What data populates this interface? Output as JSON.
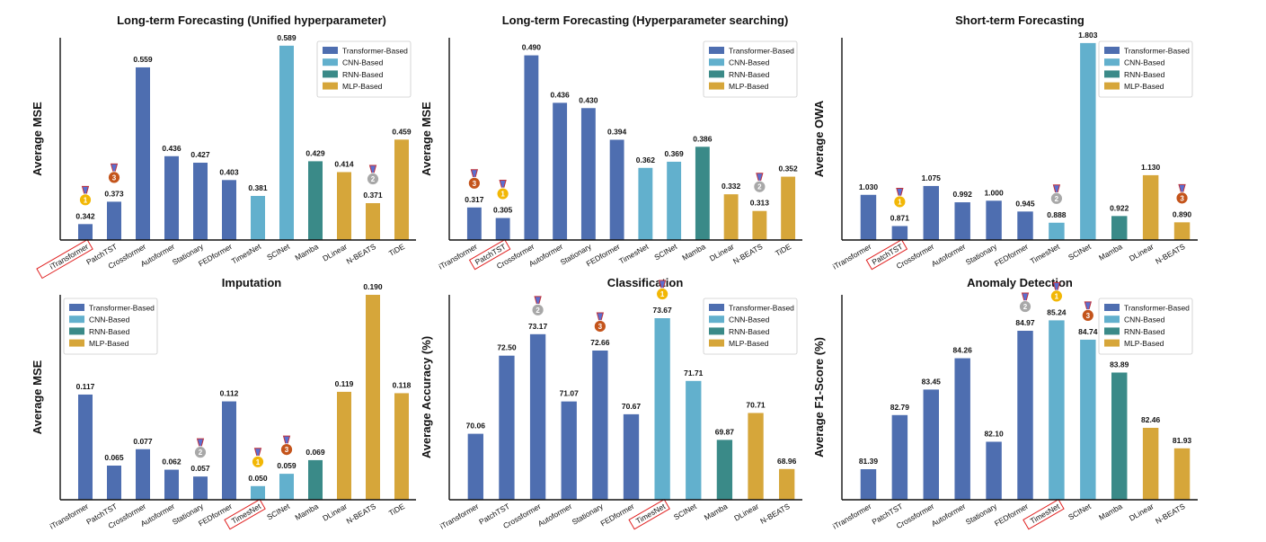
{
  "colors": {
    "Transformer-Based": "#4e6eb0",
    "CNN-Based": "#62b0cd",
    "RNN-Based": "#3a8a88",
    "MLP-Based": "#d6a63a",
    "gold": "#f2b705",
    "silver": "#a8a8a8",
    "bronze": "#c4541b",
    "highlight": "#e02020"
  },
  "legend": [
    "Transformer-Based",
    "CNN-Based",
    "RNN-Based",
    "MLP-Based"
  ],
  "chart_data": [
    {
      "type": "bar",
      "title": "Long-term Forecasting (Unified hyperparameter)",
      "ylabel": "Average MSE",
      "ylim": [
        0.32,
        0.6
      ],
      "legend_position": "top-right",
      "highlight": "iTransformer",
      "categories": [
        "iTransformer",
        "PatchTST",
        "Crossformer",
        "Autoformer",
        "Stationary",
        "FEDformer",
        "TimesNet",
        "SCINet",
        "Mamba",
        "DLinear",
        "N-BEATS",
        "TiDE"
      ],
      "values": [
        0.342,
        0.373,
        0.559,
        0.436,
        0.427,
        0.403,
        0.381,
        0.589,
        0.429,
        0.414,
        0.371,
        0.459
      ],
      "labels": [
        "0.342",
        "0.373",
        "0.559",
        "0.436",
        "0.427",
        "0.403",
        "0.381",
        "0.589",
        "0.429",
        "0.414",
        "0.371",
        "0.459"
      ],
      "groups": [
        "Transformer-Based",
        "Transformer-Based",
        "Transformer-Based",
        "Transformer-Based",
        "Transformer-Based",
        "Transformer-Based",
        "CNN-Based",
        "CNN-Based",
        "RNN-Based",
        "MLP-Based",
        "MLP-Based",
        "MLP-Based"
      ],
      "medals": [
        {
          "index": 0,
          "rank": "1"
        },
        {
          "index": 1,
          "rank": "3"
        },
        {
          "index": 10,
          "rank": "2"
        }
      ]
    },
    {
      "type": "bar",
      "title": "Long-term Forecasting (Hyperparameter searching)",
      "ylabel": "Average MSE",
      "ylim": [
        0.28,
        0.51
      ],
      "legend_position": "top-right",
      "highlight": "PatchTST",
      "categories": [
        "iTransformer",
        "PatchTST",
        "Crossformer",
        "Autoformer",
        "Stationary",
        "FEDformer",
        "TimesNet",
        "SCINet",
        "Mamba",
        "DLinear",
        "N-BEATS",
        "TiDE"
      ],
      "values": [
        0.317,
        0.305,
        0.49,
        0.436,
        0.43,
        0.394,
        0.362,
        0.369,
        0.386,
        0.332,
        0.313,
        0.352
      ],
      "labels": [
        "0.317",
        "0.305",
        "0.490",
        "0.436",
        "0.430",
        "0.394",
        "0.362",
        "0.369",
        "0.386",
        "0.332",
        "0.313",
        "0.352"
      ],
      "groups": [
        "Transformer-Based",
        "Transformer-Based",
        "Transformer-Based",
        "Transformer-Based",
        "Transformer-Based",
        "Transformer-Based",
        "CNN-Based",
        "CNN-Based",
        "RNN-Based",
        "MLP-Based",
        "MLP-Based",
        "MLP-Based"
      ],
      "medals": [
        {
          "index": 0,
          "rank": "3"
        },
        {
          "index": 1,
          "rank": "1"
        },
        {
          "index": 10,
          "rank": "2"
        }
      ]
    },
    {
      "type": "bar",
      "title": "Short-term Forecasting",
      "ylabel": "Average OWA",
      "ylim": [
        0.8,
        1.83
      ],
      "legend_position": "top-right",
      "highlight": "PatchTST",
      "categories": [
        "iTransformer",
        "PatchTST",
        "Crossformer",
        "Autoformer",
        "Stationary",
        "FEDformer",
        "TimesNet",
        "SCINet",
        "Mamba",
        "DLinear",
        "N-BEATS"
      ],
      "values": [
        1.03,
        0.871,
        1.075,
        0.992,
        1.0,
        0.945,
        0.888,
        1.803,
        0.922,
        1.13,
        0.89
      ],
      "labels": [
        "1.030",
        "0.871",
        "1.075",
        "0.992",
        "1.000",
        "0.945",
        "0.888",
        "1.803",
        "0.922",
        "1.130",
        "0.890"
      ],
      "groups": [
        "Transformer-Based",
        "Transformer-Based",
        "Transformer-Based",
        "Transformer-Based",
        "Transformer-Based",
        "Transformer-Based",
        "CNN-Based",
        "CNN-Based",
        "RNN-Based",
        "MLP-Based",
        "MLP-Based"
      ],
      "medals": [
        {
          "index": 1,
          "rank": "1"
        },
        {
          "index": 6,
          "rank": "2"
        },
        {
          "index": 10,
          "rank": "3"
        }
      ]
    },
    {
      "type": "bar",
      "title": "Imputation",
      "ylabel": "Average MSE",
      "ylim": [
        0.04,
        0.19
      ],
      "legend_position": "top-left",
      "highlight": "TimesNet",
      "categories": [
        "iTransformer",
        "PatchTST",
        "Crossformer",
        "Autoformer",
        "Stationary",
        "FEDformer",
        "TimesNet",
        "SCINet",
        "Mamba",
        "DLinear",
        "N-BEATS",
        "TiDE"
      ],
      "values": [
        0.117,
        0.065,
        0.077,
        0.062,
        0.057,
        0.112,
        0.05,
        0.059,
        0.069,
        0.119,
        0.19,
        0.118
      ],
      "labels": [
        "0.117",
        "0.065",
        "0.077",
        "0.062",
        "0.057",
        "0.112",
        "0.050",
        "0.059",
        "0.069",
        "0.119",
        "0.190",
        "0.118"
      ],
      "groups": [
        "Transformer-Based",
        "Transformer-Based",
        "Transformer-Based",
        "Transformer-Based",
        "Transformer-Based",
        "Transformer-Based",
        "CNN-Based",
        "CNN-Based",
        "RNN-Based",
        "MLP-Based",
        "MLP-Based",
        "MLP-Based"
      ],
      "medals": [
        {
          "index": 4,
          "rank": "2"
        },
        {
          "index": 6,
          "rank": "1"
        },
        {
          "index": 7,
          "rank": "3"
        }
      ]
    },
    {
      "type": "bar",
      "title": "Classification",
      "ylabel": "Average Accuracy (%)",
      "ylim": [
        68.0,
        74.4
      ],
      "legend_position": "top-right",
      "highlight": "TimesNet",
      "categories": [
        "iTransformer",
        "PatchTST",
        "Crossformer",
        "Autoformer",
        "Stationary",
        "FEDformer",
        "TimesNet",
        "SCINet",
        "Mamba",
        "DLinear",
        "N-BEATS"
      ],
      "values": [
        70.06,
        72.5,
        73.17,
        71.07,
        72.66,
        70.67,
        73.67,
        71.71,
        69.87,
        70.71,
        68.96
      ],
      "labels": [
        "70.06",
        "72.50",
        "73.17",
        "71.07",
        "72.66",
        "70.67",
        "73.67",
        "71.71",
        "69.87",
        "70.71",
        "68.96"
      ],
      "groups": [
        "Transformer-Based",
        "Transformer-Based",
        "Transformer-Based",
        "Transformer-Based",
        "Transformer-Based",
        "Transformer-Based",
        "CNN-Based",
        "CNN-Based",
        "RNN-Based",
        "MLP-Based",
        "MLP-Based"
      ],
      "medals": [
        {
          "index": 2,
          "rank": "2"
        },
        {
          "index": 4,
          "rank": "3"
        },
        {
          "index": 6,
          "rank": "1"
        }
      ]
    },
    {
      "type": "bar",
      "title": "Anomaly Detection",
      "ylabel": "Average F1-Score (%)",
      "ylim": [
        80.6,
        85.9
      ],
      "legend_position": "top-right",
      "highlight": "TimesNet",
      "categories": [
        "iTransformer",
        "PatchTST",
        "Crossformer",
        "Autoformer",
        "Stationary",
        "FEDformer",
        "TimesNet",
        "SCINet",
        "Mamba",
        "DLinear",
        "N-BEATS"
      ],
      "values": [
        81.39,
        82.79,
        83.45,
        84.26,
        82.1,
        84.97,
        85.24,
        84.74,
        83.89,
        82.46,
        81.93
      ],
      "labels": [
        "81.39",
        "82.79",
        "83.45",
        "84.26",
        "82.10",
        "84.97",
        "85.24",
        "84.74",
        "83.89",
        "82.46",
        "81.93"
      ],
      "groups": [
        "Transformer-Based",
        "Transformer-Based",
        "Transformer-Based",
        "Transformer-Based",
        "Transformer-Based",
        "Transformer-Based",
        "CNN-Based",
        "CNN-Based",
        "RNN-Based",
        "MLP-Based",
        "MLP-Based"
      ],
      "medals": [
        {
          "index": 5,
          "rank": "2"
        },
        {
          "index": 6,
          "rank": "1"
        },
        {
          "index": 7,
          "rank": "3"
        }
      ]
    }
  ]
}
